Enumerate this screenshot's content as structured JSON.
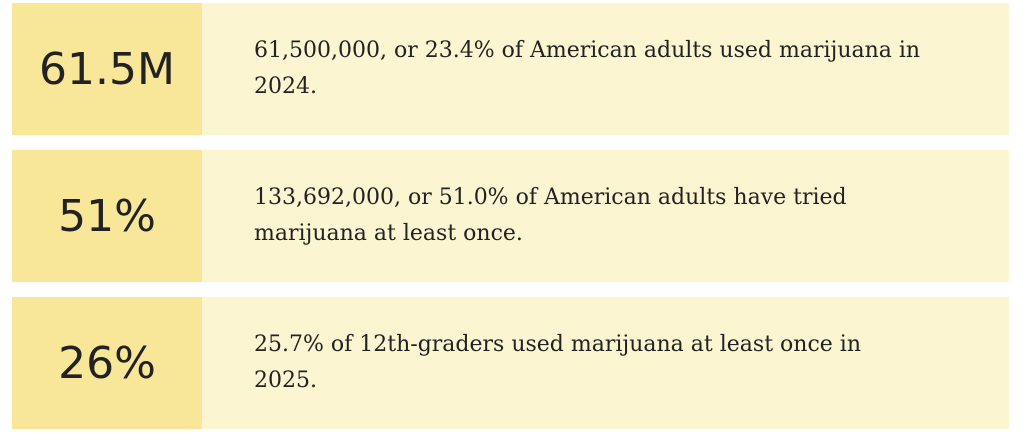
{
  "cards": [
    {
      "stat": "61.5M",
      "text": "61,500,000, or 23.4% of American adults used marijuana in 2024."
    },
    {
      "stat": "51%",
      "text": "133,692,000, or 51.0% of American adults have tried marijuana at least once."
    },
    {
      "stat": "26%",
      "text": "25.7% of 12th-graders used marijuana at least once in 2025."
    }
  ]
}
